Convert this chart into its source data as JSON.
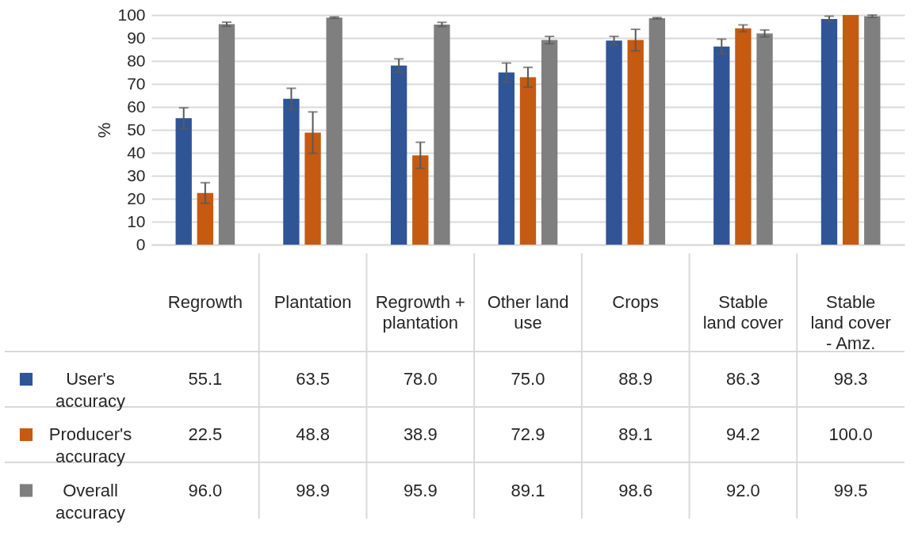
{
  "chart_data": {
    "type": "bar",
    "ylabel": "%",
    "categories": [
      "Regrowth",
      "Plantation",
      "Regrowth + plantation",
      "Other land use",
      "Crops",
      "Stable land cover",
      "Stable land cover - Amz."
    ],
    "series": [
      {
        "name": "User's accuracy",
        "color": "#2f5597",
        "values": [
          55.1,
          63.5,
          78.0,
          75.0,
          88.9,
          86.3,
          98.3
        ],
        "value_labels": [
          "55.1",
          "63.5",
          "78.0",
          "75.0",
          "88.9",
          "86.3",
          "98.3"
        ],
        "errors": [
          4.5,
          4.6,
          2.9,
          4.1,
          1.8,
          3.2,
          1.2
        ]
      },
      {
        "name": "Producer's accuracy",
        "color": "#c55a11",
        "values": [
          22.5,
          48.8,
          38.9,
          72.9,
          89.1,
          94.2,
          100.0
        ],
        "value_labels": [
          "22.5",
          "48.8",
          "38.9",
          "72.9",
          "89.1",
          "94.2",
          "100.0"
        ],
        "errors": [
          4.5,
          9,
          5.7,
          4.3,
          4.7,
          1.5,
          null
        ]
      },
      {
        "name": "Overall accuracy",
        "color": "#7f7f7f",
        "values": [
          96.0,
          98.9,
          95.9,
          89.1,
          98.6,
          92.0,
          99.5
        ],
        "value_labels": [
          "96.0",
          "98.9",
          "95.9",
          "89.1",
          "98.6",
          "92.0",
          "99.5"
        ],
        "errors": [
          0.9,
          0.3,
          0.9,
          1.6,
          0.3,
          1.5,
          0.5
        ]
      }
    ],
    "ylim": [
      0,
      100
    ],
    "yticks": [
      0,
      10,
      20,
      30,
      40,
      50,
      60,
      70,
      80,
      90,
      100
    ],
    "grid": "y",
    "legend": "left"
  }
}
